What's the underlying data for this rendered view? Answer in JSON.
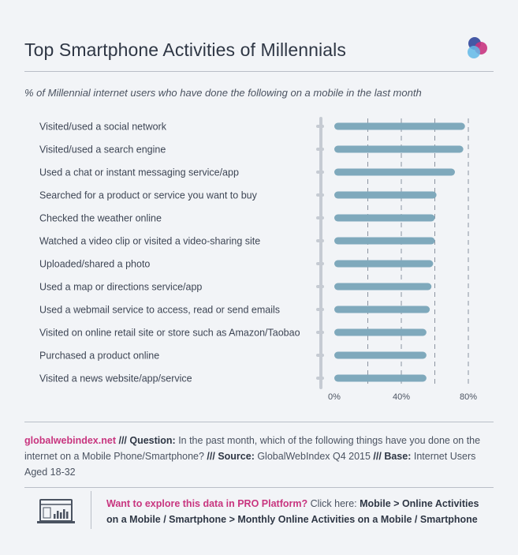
{
  "header": {
    "title": "Top Smartphone Activities of Millennials",
    "subtitle": "% of Millennial internet users who have done the following on a mobile in the last month"
  },
  "colors": {
    "bar": "#7fa9bc",
    "accent": "#c8357f",
    "background": "#f2f4f7"
  },
  "chart_data": {
    "type": "bar",
    "orientation": "horizontal",
    "categories": [
      "Visited/used a social network",
      "Visited/used a search engine",
      "Used a chat or instant messaging service/app",
      "Searched for a product or service you want to buy",
      "Checked the weather online",
      "Watched a video clip or visited a video-sharing site",
      "Uploaded/shared a photo",
      "Used a map or directions service/app",
      "Used a webmail service to access, read or send emails",
      "Visited on online retail site or store such as Amazon/Taobao",
      "Purchased a product online",
      "Visited a news website/app/service"
    ],
    "values": [
      78,
      77,
      72,
      61,
      60,
      60,
      59,
      58,
      57,
      55,
      55,
      55
    ],
    "xlim": [
      0,
      80
    ],
    "xticks": [
      "0%",
      "40%",
      "80%"
    ],
    "gridlines": [
      20,
      40,
      60,
      80
    ],
    "grid": true
  },
  "footer": {
    "brand": "globalwebindex.net",
    "sep": " /// ",
    "question_label": "Question:",
    "question_text": " In the past month, which of the following things have you done on the internet on a Mobile Phone/Smartphone?",
    "source_label": "Source:",
    "source_text": " GlobalWebIndex Q4 2015",
    "base_label": "Base:",
    "base_text": " Internet Users Aged 18-32"
  },
  "cta": {
    "question": "Want to explore this data in PRO Platform?",
    "click_here": " Click here: ",
    "path": "Mobile > Online Activities on a Mobile / Smartphone > Monthly Online Activities on a Mobile / Smartphone",
    "icon": "dashboard-chart-icon"
  }
}
